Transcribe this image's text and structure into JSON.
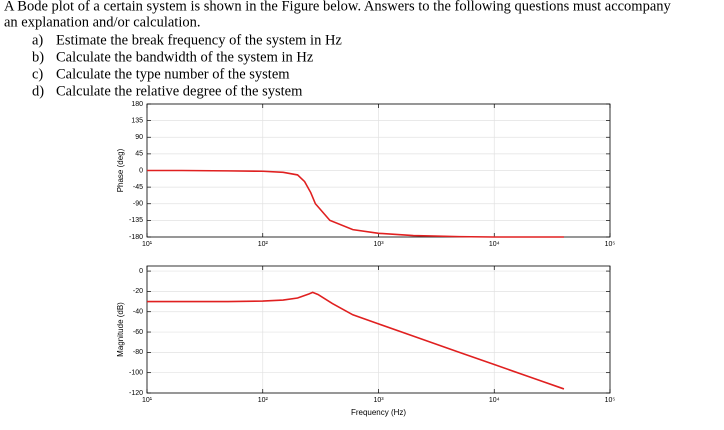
{
  "question": {
    "intro": [
      "A Bode plot of a certain system is shown in the Figure below. Answers to the following questions must accompany",
      "an explanation and/or calculation."
    ],
    "items": [
      {
        "label": "a)",
        "text": "Estimate the break frequency of the system in Hz"
      },
      {
        "label": "b)",
        "text": "Calculate the bandwidth of the system in Hz"
      },
      {
        "label": "c)",
        "text": "Calculate the type number of the system"
      },
      {
        "label": "d)",
        "text": "Calculate the relative degree of the system"
      }
    ]
  },
  "chart_data": [
    {
      "type": "line",
      "y_label": "Phase (deg)",
      "xscale": "log",
      "xlim": [
        10,
        100000
      ],
      "xticks": [
        {
          "value": 10,
          "label": "10¹"
        },
        {
          "value": 100,
          "label": "10²"
        },
        {
          "value": 1000,
          "label": "10³"
        },
        {
          "value": 10000,
          "label": "10⁴"
        },
        {
          "value": 100000,
          "label": "10⁵"
        }
      ],
      "ylim": [
        -180,
        180
      ],
      "yticks": [
        -180,
        -135,
        -90,
        -45,
        0,
        45,
        90,
        135,
        180
      ],
      "grid": true,
      "color": "#e02020",
      "x": [
        10,
        20,
        50,
        100,
        150,
        200,
        230,
        260,
        285,
        380,
        600,
        1000,
        2000,
        5000,
        10000,
        20000,
        40000
      ],
      "values": [
        0,
        0,
        -1,
        -2,
        -5,
        -12,
        -30,
        -60,
        -90,
        -135,
        -160,
        -170,
        -176,
        -179,
        -180,
        -180,
        -180
      ]
    },
    {
      "type": "line",
      "y_label": "Magnitude (dB)",
      "x_label": "Frequency (Hz)",
      "xscale": "log",
      "xlim": [
        10,
        100000
      ],
      "xticks": [
        {
          "value": 10,
          "label": "10¹"
        },
        {
          "value": 100,
          "label": "10²"
        },
        {
          "value": 1000,
          "label": "10³"
        },
        {
          "value": 10000,
          "label": "10⁴"
        },
        {
          "value": 100000,
          "label": "10⁵"
        }
      ],
      "ylim": [
        -120,
        5
      ],
      "yticks": [
        -120,
        -100,
        -80,
        -60,
        -40,
        -20,
        0
      ],
      "grid": true,
      "color": "#e02020",
      "x": [
        10,
        20,
        50,
        100,
        150,
        200,
        250,
        270,
        300,
        400,
        600,
        1000,
        2000,
        5000,
        10000,
        20000,
        40000
      ],
      "values": [
        -30,
        -30,
        -30,
        -29.5,
        -28.5,
        -26.5,
        -22.5,
        -21,
        -23,
        -32,
        -43,
        -52,
        -64,
        -80,
        -92,
        -104,
        -116
      ]
    }
  ]
}
